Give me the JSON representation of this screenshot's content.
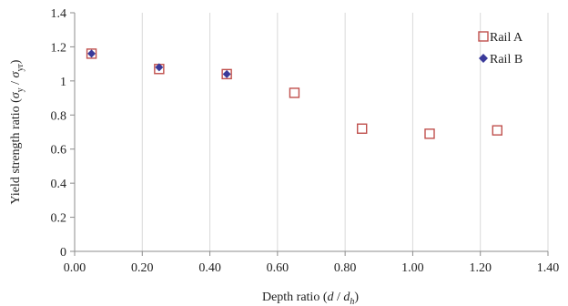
{
  "chart_data": {
    "type": "scatter",
    "title": "",
    "xlabel": {
      "prefix": "Depth ratio (",
      "main": "d",
      "sep": " / ",
      "main2": "d",
      "sub2": "h",
      "suffix": ")"
    },
    "ylabel": {
      "prefix": "Yield strength ratio (",
      "main": "σ",
      "sub": "y",
      "sep": " / ",
      "main2": "σ",
      "sub2": "yr",
      "suffix": ")"
    },
    "xlim": [
      0,
      1.4
    ],
    "ylim": [
      0,
      1.4
    ],
    "xticks": [
      0,
      0.2,
      0.4,
      0.6,
      0.8,
      1.0,
      1.2,
      1.4
    ],
    "xtick_labels": [
      "0.00",
      "0.20",
      "0.40",
      "0.60",
      "0.80",
      "1.00",
      "1.20",
      "1.40"
    ],
    "yticks": [
      0,
      0.2,
      0.4,
      0.6,
      0.8,
      1.0,
      1.2,
      1.4
    ],
    "ytick_labels": [
      "0",
      "0.2",
      "0.4",
      "0.6",
      "0.8",
      "1",
      "1.2",
      "1.4"
    ],
    "grid": "vertical",
    "legend_position": "top-right",
    "series": [
      {
        "name": "Rail A",
        "marker": "square-open",
        "color": "#c0504d",
        "x": [
          0.05,
          0.25,
          0.45,
          0.65,
          0.85,
          1.05,
          1.25
        ],
        "y": [
          1.16,
          1.07,
          1.04,
          0.93,
          0.72,
          0.69,
          0.71
        ]
      },
      {
        "name": "Rail B",
        "marker": "diamond-filled",
        "color": "#3a3a9a",
        "x": [
          0.05,
          0.25,
          0.45
        ],
        "y": [
          1.16,
          1.08,
          1.04
        ]
      }
    ]
  }
}
